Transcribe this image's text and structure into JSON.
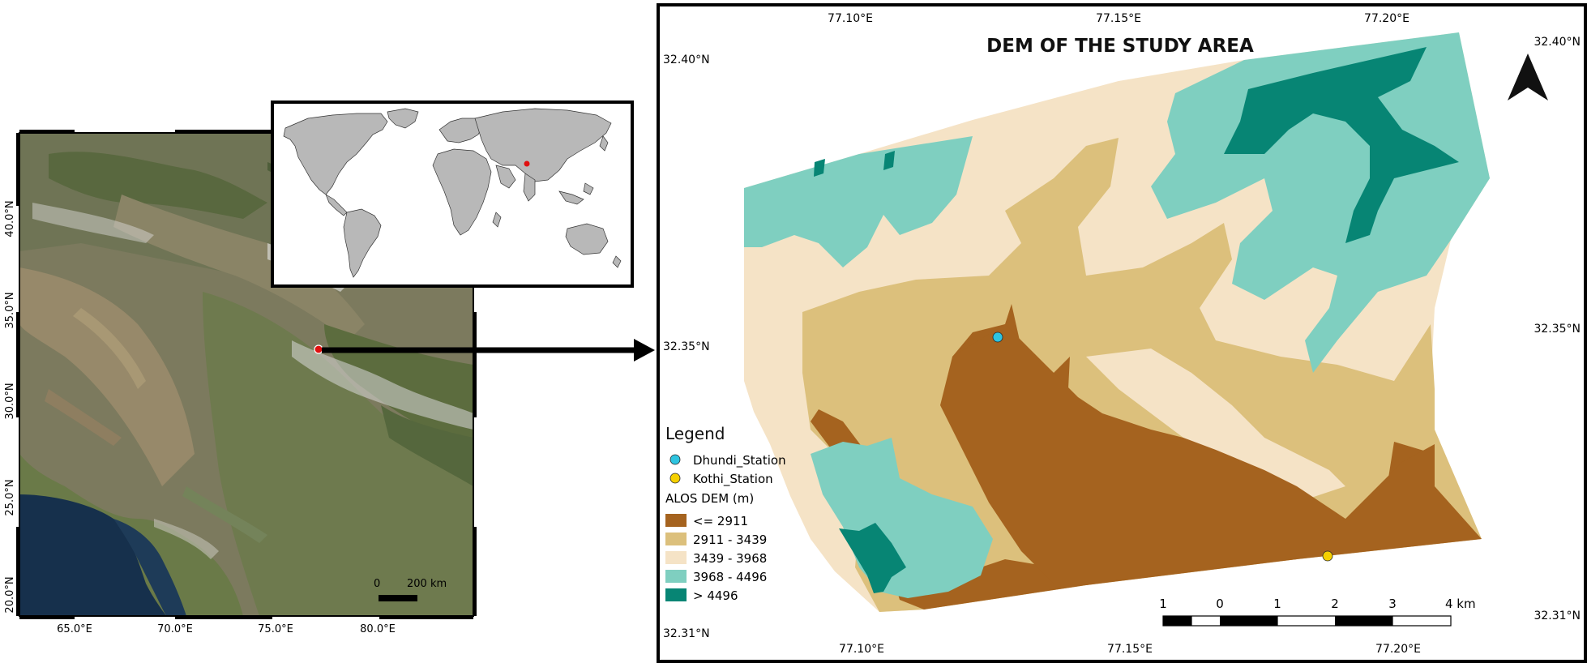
{
  "regional_map": {
    "lat_labels": [
      "40.0°N",
      "35.0°N",
      "30.0°N",
      "25.0°N",
      "20.0°N"
    ],
    "lon_labels": [
      "65.0°E",
      "70.0°E",
      "75.0°E",
      "80.0°E"
    ],
    "scale_bar": {
      "start": "0",
      "end": "200 km"
    },
    "marker_color": "#e01010"
  },
  "world_inset": {
    "marker_color": "#e01010"
  },
  "dem_map": {
    "title": "DEM OF THE STUDY AREA",
    "lon_labels_top": [
      "77.10°E",
      "77.15°E",
      "77.20°E"
    ],
    "lon_labels_bottom": [
      "77.10°E",
      "77.15°E",
      "77.20°E"
    ],
    "lat_labels_left": [
      "32.40°N",
      "32.35°N",
      "32.31°N"
    ],
    "lat_labels_right": [
      "32.40°N",
      "32.35°N",
      "32.31°N"
    ],
    "legend": {
      "heading": "Legend",
      "stations": [
        {
          "name": "Dhundi_Station",
          "color": "#2ec4e0"
        },
        {
          "name": "Kothi_Station",
          "color": "#f5d000"
        }
      ],
      "dem_title": "ALOS DEM (m)",
      "classes": [
        {
          "label": "<= 2911",
          "color": "#a5631f"
        },
        {
          "label": "2911 - 3439",
          "color": "#dcc07c"
        },
        {
          "label": "3439 - 3968",
          "color": "#f5e3c6"
        },
        {
          "label": "3968 - 4496",
          "color": "#7fcfc0"
        },
        {
          "label": "> 4496",
          "color": "#078574"
        }
      ]
    },
    "scale_bar": {
      "labels": [
        "1",
        "0",
        "1",
        "2",
        "3",
        "4 km"
      ]
    },
    "north_arrow": "north-arrow-icon"
  }
}
